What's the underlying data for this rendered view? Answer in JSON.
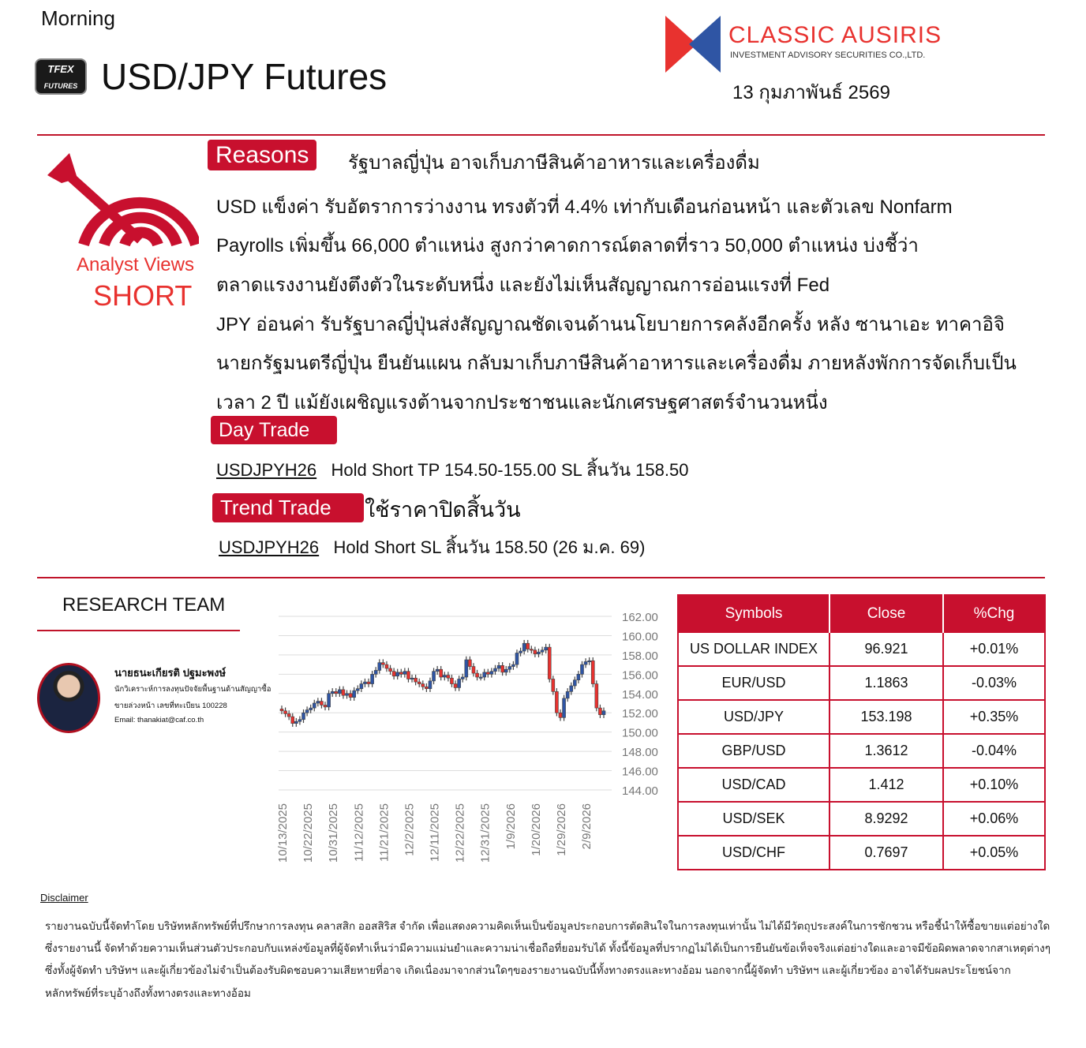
{
  "header": {
    "edition": "Morning",
    "logo_text": "TFEX FUTURES",
    "title": "USD/JPY Futures",
    "brand_name": "CLASSIC AUSIRIS",
    "brand_sub": "INVESTMENT ADVISORY SECURITIES CO.,LTD.",
    "date": "13 กุมภาพันธ์ 2569",
    "accent": "#c8102e"
  },
  "analyst": {
    "label": "Analyst Views",
    "view": "SHORT"
  },
  "reasons": {
    "badge": "Reasons",
    "headline": "รัฐบาลญี่ปุ่น อาจเก็บภาษีสินค้าอาหารและเครื่องดื่ม",
    "lines": [
      "USD แข็งค่า รับอัตราการว่างงาน ทรงตัวที่ 4.4% เท่ากับเดือนก่อนหน้า และตัวเลข Nonfarm",
      "Payrolls เพิ่มขึ้น 66,000  ตำแหน่ง สูงกว่าคาดการณ์ตลาดที่ราว  50,000 ตำแหน่ง บ่งชี้ว่า",
      "ตลาดแรงงานยังตึงตัวในระดับหนึ่ง และยังไม่เห็นสัญญาณการอ่อนแรงที่ Fed",
      "JPY อ่อนค่า รับรัฐบาลญี่ปุ่นส่งสัญญาณชัดเจนด้านนโยบายการคลังอีกครั้ง  หลัง ซานาเอะ ทาคาอิจิ",
      "นายกรัฐมนตรีญี่ปุ่น ยืนยันแผน กลับมาเก็บภาษีสินค้าอาหารและเครื่องดื่ม ภายหลังพักการจัดเก็บเป็น",
      "เวลา 2 ปี แม้ยังเผชิญแรงต้านจากประชาชนและนักเศรษฐศาสตร์จำนวนหนึ่ง"
    ]
  },
  "day_trade": {
    "badge": "Day Trade",
    "symbol": "USDJPYH26",
    "text": "Hold Short TP 154.50-155.00  SL สิ้นวัน 158.50"
  },
  "trend_trade": {
    "badge": "Trend Trade",
    "note": "ใช้ราคาปิดสิ้นวัน",
    "symbol": "USDJPYH26",
    "text": "Hold Short SL สิ้นวัน 158.50 (26 ม.ค. 69)"
  },
  "research": {
    "title": "RESEARCH TEAM",
    "name": "นายธนะเกียรติ ปฐมะพงษ์",
    "role": "นักวิเคราะห์การลงทุนปัจจัยพื้นฐานด้านสัญญาซื้อ",
    "license": "ขายล่วงหน้า เลขที่ทะเบียน 100228",
    "email": "Email: thanakiat@caf.co.th"
  },
  "chart_data": {
    "type": "candlestick",
    "ylim": [
      144,
      162
    ],
    "yticks": [
      "162.00",
      "160.00",
      "158.00",
      "156.00",
      "154.00",
      "152.00",
      "150.00",
      "148.00",
      "146.00",
      "144.00"
    ],
    "xticks": [
      "10/13/2025",
      "10/22/2025",
      "10/31/2025",
      "11/12/2025",
      "11/21/2025",
      "12/2/2025",
      "12/11/2025",
      "12/22/2025",
      "12/31/2025",
      "1/9/2026",
      "1/20/2026",
      "1/29/2026",
      "2/9/2026"
    ],
    "up_color": "#2f55a4",
    "down_color": "#e8322f",
    "grid": true,
    "close": [
      152.2,
      151.9,
      151.6,
      150.9,
      151.1,
      151.3,
      152.0,
      152.3,
      152.5,
      153.0,
      153.2,
      152.8,
      152.6,
      154.0,
      154.2,
      154.0,
      154.4,
      153.8,
      154.0,
      153.6,
      154.3,
      154.5,
      155.0,
      155.2,
      155.0,
      156.0,
      156.4,
      157.2,
      157.0,
      156.6,
      156.3,
      155.8,
      156.2,
      156.0,
      156.3,
      155.5,
      155.6,
      155.2,
      155.0,
      154.7,
      154.5,
      155.3,
      156.3,
      156.5,
      155.7,
      155.9,
      155.6,
      155.0,
      154.6,
      155.5,
      155.7,
      157.5,
      156.8,
      156.1,
      155.7,
      155.7,
      156.2,
      156.0,
      156.3,
      156.6,
      156.9,
      156.2,
      156.5,
      156.8,
      157.0,
      158.2,
      158.4,
      159.2,
      158.6,
      158.5,
      158.1,
      158.3,
      158.5,
      158.8,
      155.5,
      154.2,
      152.0,
      151.5,
      153.5,
      154.2,
      154.8,
      155.4,
      156.0,
      157.0,
      157.3,
      157.4,
      155.0,
      152.5,
      151.8,
      152.2
    ]
  },
  "table": {
    "headers": [
      "Symbols",
      "Close",
      "%Chg"
    ],
    "rows": [
      [
        "US DOLLAR INDEX",
        "96.921",
        "+0.01%"
      ],
      [
        "EUR/USD",
        "1.1863",
        "-0.03%"
      ],
      [
        "USD/JPY",
        "153.198",
        "+0.35%"
      ],
      [
        "GBP/USD",
        "1.3612",
        "-0.04%"
      ],
      [
        "USD/CAD",
        "1.412",
        "+0.10%"
      ],
      [
        "USD/SEK",
        "8.9292",
        "+0.06%"
      ],
      [
        "USD/CHF",
        "0.7697",
        "+0.05%"
      ]
    ]
  },
  "disclaimer": {
    "title": "Disclaimer",
    "lines": [
      "รายงานฉบับนี้จัดทำโดย บริษัทหลักทรัพย์ที่ปรึกษาการลงทุน คลาสสิก ออสสิริส จำกัด เพื่อแสดงความคิดเห็นเป็นข้อมูลประกอบการตัดสินใจในการลงทุนเท่านั้น  ไม่ได้มีวัตถุประสงค์ในการชักชวน  หรือชี้นำให้ซื้อขายแต่อย่างใด",
      "ซึ่งรายงานนี้ จัดทำด้วยความเห็นส่วนตัวประกอบกับแหล่งข้อมูลที่ผู้จัดทำเห็นว่ามีความแม่นยำและความน่าเชื่อถือที่ยอมรับได้  ทั้งนี้ข้อมูลที่ปรากฏไม่ได้เป็นการยืนยันข้อเท็จจริงแต่อย่างใดและอาจมีข้อผิดพลาดจากสาเหตุต่างๆ",
      "ซึ่งทั้งผู้จัดทำ บริษัทฯ และผู้เกี่ยวข้องไม่จำเป็นต้องรับผิดชอบความเสียหายที่อาจ  เกิดเนื่องมาจากส่วนใดๆของรายงานฉบับนี้ทั้งทางตรงและทางอ้อม  นอกจากนี้ผู้จัดทำ บริษัทฯ และผู้เกี่ยวข้อง อาจได้รับผลประโยชน์จาก",
      "หลักทรัพย์ที่ระบุอ้างถึงทั้งทางตรงและทางอ้อม"
    ]
  }
}
